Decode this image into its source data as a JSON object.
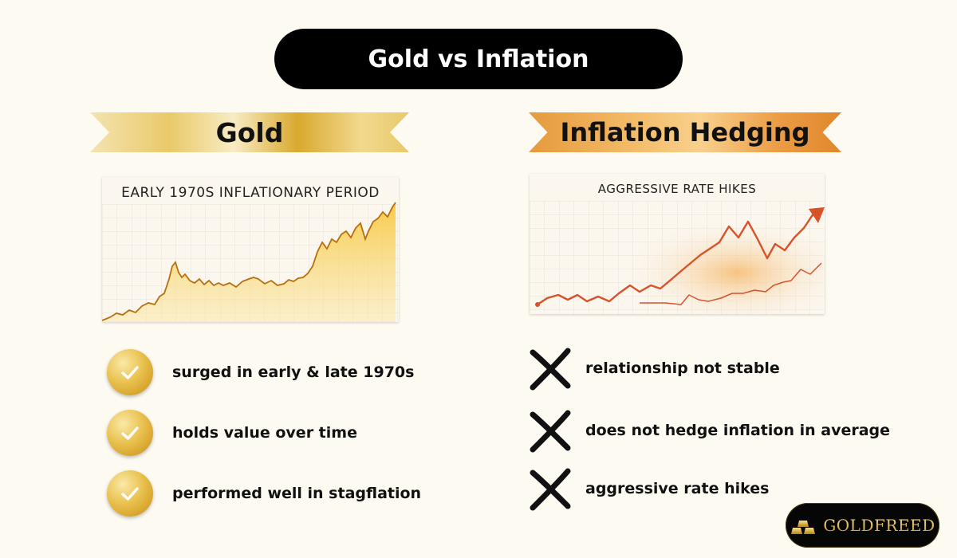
{
  "header": {
    "title": "Gold vs Inflation"
  },
  "columns": {
    "left": {
      "ribbon": "Gold",
      "chart_title": "EARLY 1970S INFLATIONARY PERIOD",
      "points": [
        {
          "icon": "check-icon",
          "text": "surged in early & late 1970s"
        },
        {
          "icon": "check-icon",
          "text": "holds value over time"
        },
        {
          "icon": "check-icon",
          "text": "performed well in stagflation"
        }
      ]
    },
    "right": {
      "ribbon": "Inflation Hedging",
      "chart_title": "AGGRESSIVE RATE HIKES",
      "points": [
        {
          "icon": "cross-icon",
          "text": "relationship not stable"
        },
        {
          "icon": "cross-icon",
          "text": "does not hedge inflation in average"
        },
        {
          "icon": "cross-icon",
          "text": "aggressive rate hikes"
        }
      ]
    }
  },
  "brand": {
    "name": "GOLDFREED"
  },
  "colors": {
    "gold": "#d9a92e",
    "orange": "#e69a3d",
    "line_red": "#d8532a",
    "line_gold": "#b8700f"
  }
}
